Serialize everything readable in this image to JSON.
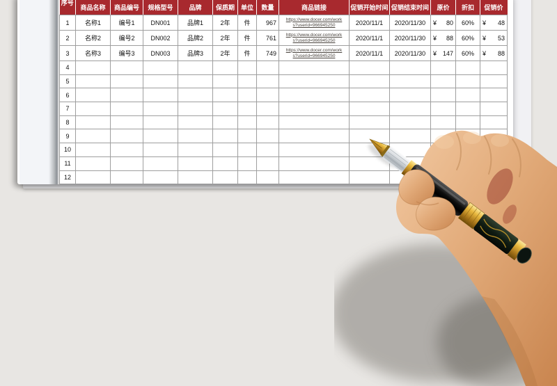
{
  "page": {
    "background_color": "#e8e6e3"
  },
  "table": {
    "header_bg": "#a8292e",
    "header_text_color": "#ffffff",
    "grid_color": "#9e9e9e",
    "link_color": "#4a443e",
    "headers": [
      "序号",
      "商品名称",
      "商品编号",
      "规格型号",
      "品牌",
      "保质期",
      "单位",
      "数量",
      "商品链接",
      "促销开始时间",
      "促销结束时间",
      "原价",
      "折扣",
      "促销价"
    ],
    "rows": [
      {
        "no": "1",
        "name": "名称1",
        "code": "编号1",
        "model": "DN001",
        "brand": "品牌1",
        "warranty": "2年",
        "unit": "件",
        "qty": "967",
        "link_line1": "https://www.docer.com/work",
        "link_line2": "s?userid=966945250",
        "start": "2020/11/1",
        "end": "2020/11/30",
        "currency": "¥",
        "price": "80",
        "discount": "60%",
        "promo": "48"
      },
      {
        "no": "2",
        "name": "名称2",
        "code": "编号2",
        "model": "DN002",
        "brand": "品牌2",
        "warranty": "2年",
        "unit": "件",
        "qty": "761",
        "link_line1": "https://www.docer.com/work",
        "link_line2": "s?userid=966945250",
        "start": "2020/11/1",
        "end": "2020/11/30",
        "currency": "¥",
        "price": "88",
        "discount": "60%",
        "promo": "53"
      },
      {
        "no": "3",
        "name": "名称3",
        "code": "编号3",
        "model": "DN003",
        "brand": "品牌3",
        "warranty": "2年",
        "unit": "件",
        "qty": "749",
        "link_line1": "https://www.docer.com/work",
        "link_line2": "s?userid=966945250",
        "start": "2020/11/1",
        "end": "2020/11/30",
        "currency": "¥",
        "price": "147",
        "discount": "60%",
        "promo": "88"
      }
    ],
    "empty_row_numbers": [
      "4",
      "5",
      "6",
      "7",
      "8",
      "9",
      "10",
      "11",
      "12"
    ]
  },
  "photo": {
    "label": "hand holding fountain pen over spreadsheet"
  }
}
